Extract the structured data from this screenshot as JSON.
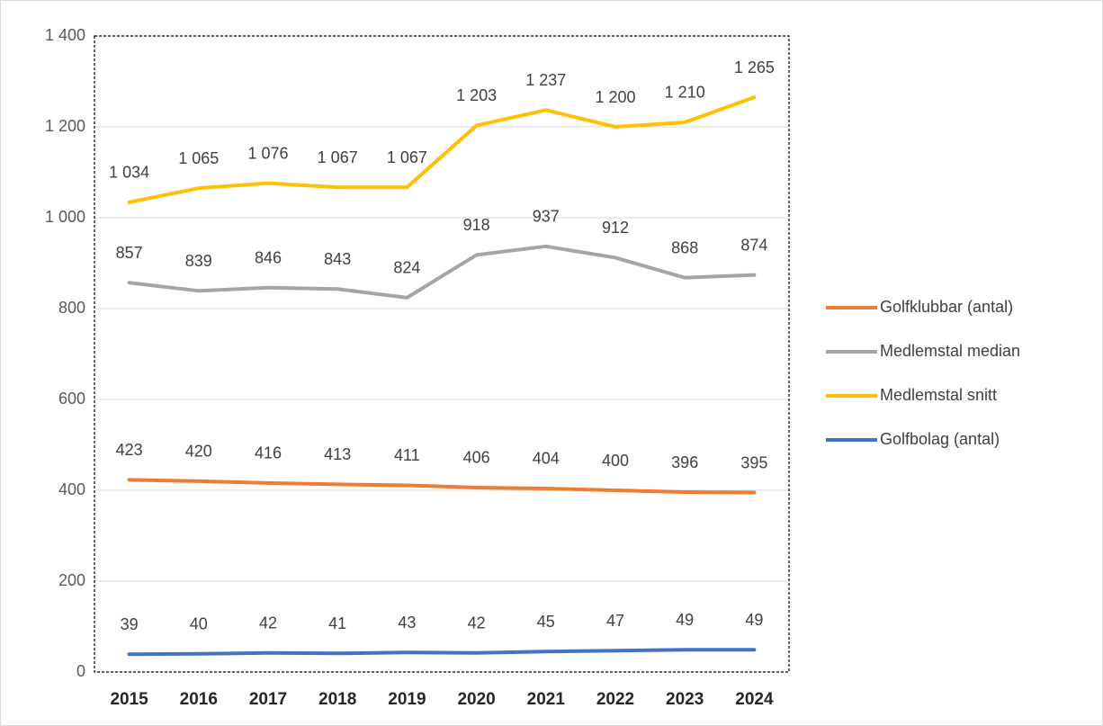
{
  "chart_data": {
    "type": "line",
    "categories": [
      "2015",
      "2016",
      "2017",
      "2018",
      "2019",
      "2020",
      "2021",
      "2022",
      "2023",
      "2024"
    ],
    "series": [
      {
        "name": "Golfklubbar (antal)",
        "color": "#ED7D31",
        "values": [
          423,
          420,
          416,
          413,
          411,
          406,
          404,
          400,
          396,
          395
        ]
      },
      {
        "name": "Medlemstal median",
        "color": "#A5A5A5",
        "values": [
          857,
          839,
          846,
          843,
          824,
          918,
          937,
          912,
          868,
          874
        ]
      },
      {
        "name": "Medlemstal snitt",
        "color": "#FFC000",
        "values": [
          1034,
          1065,
          1076,
          1067,
          1067,
          1203,
          1237,
          1200,
          1210,
          1265
        ],
        "value_labels": [
          "1 034",
          "1 065",
          "1 076",
          "1 067",
          "1 067",
          "1 203",
          "1 237",
          "1 200",
          "1 210",
          "1 265"
        ]
      },
      {
        "name": "Golfbolag (antal)",
        "color": "#4472C4",
        "values": [
          39,
          40,
          42,
          41,
          43,
          42,
          45,
          47,
          49,
          49
        ]
      }
    ],
    "ylim": [
      0,
      1400
    ],
    "yticks": [
      0,
      200,
      400,
      600,
      800,
      {
        "value": 1000,
        "label": "1 000"
      },
      {
        "value": 1200,
        "label": "1 200"
      },
      {
        "value": 1400,
        "label": "1 400"
      }
    ],
    "grid": true,
    "legend": "right"
  }
}
